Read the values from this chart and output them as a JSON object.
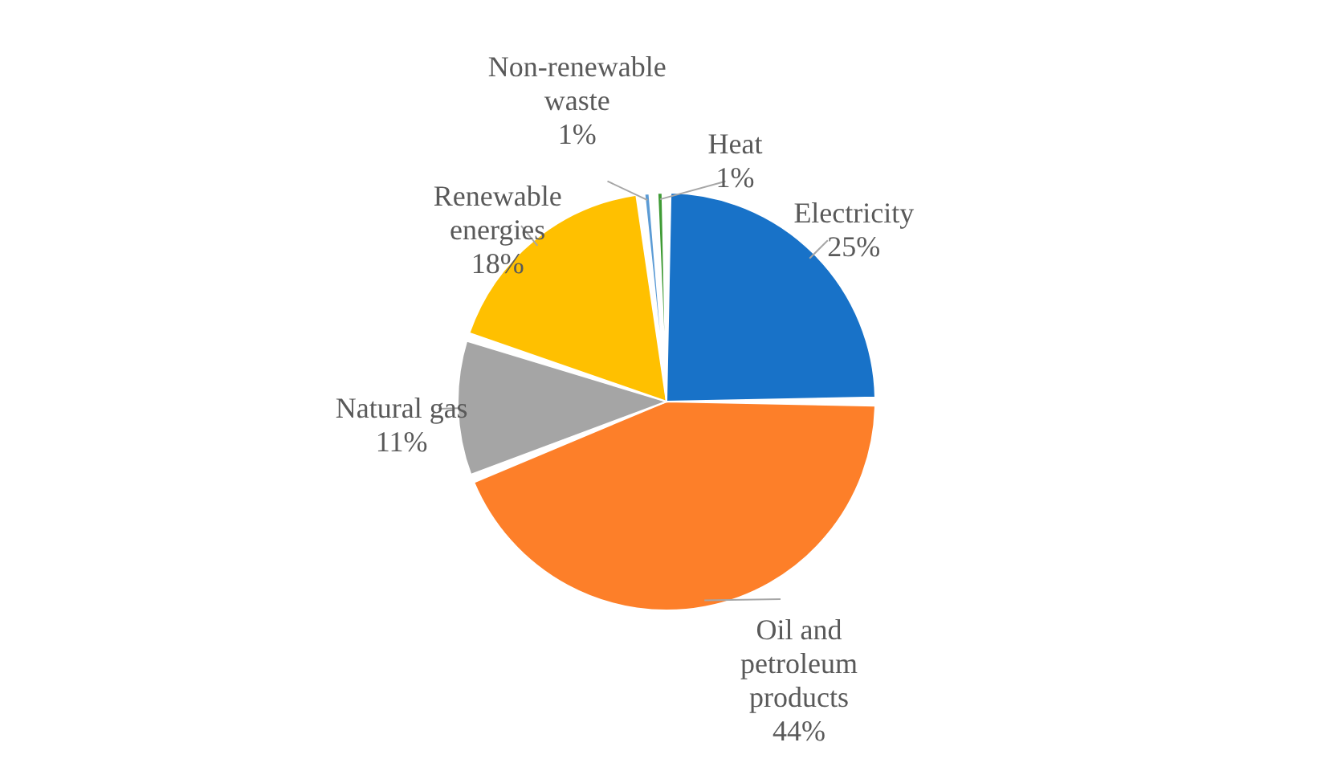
{
  "chart_data": {
    "type": "pie",
    "categories": [
      "Electricity",
      "Oil and petroleum products",
      "Natural gas",
      "Renewable energies",
      "Non-renewable waste",
      "Heat"
    ],
    "values": [
      25,
      44,
      11,
      18,
      1,
      1
    ],
    "colors": [
      "#1872c8",
      "#fd7f29",
      "#a5a5a5",
      "#ffc000",
      "#5b9bd5",
      "#3f9b35"
    ],
    "value_labels": [
      "25%",
      "44%",
      "11%",
      "18%",
      "1%",
      "1%"
    ]
  }
}
